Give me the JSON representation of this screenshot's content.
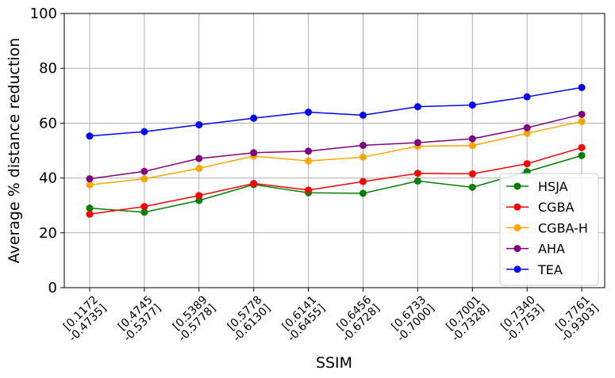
{
  "chart_data": {
    "type": "line",
    "title": "",
    "xlabel": "SSIM",
    "ylabel": "Average % distance reduction",
    "ylim": [
      0,
      100
    ],
    "yticks": [
      0,
      20,
      40,
      60,
      80,
      100
    ],
    "grid": true,
    "legend_position": "lower-right",
    "categories": [
      [
        "[0.1172",
        "-0.4735]"
      ],
      [
        "[0.4745",
        "-0.5377]"
      ],
      [
        "[0.5389",
        "-0.5778]"
      ],
      [
        "[0.5778",
        "-0.6130]"
      ],
      [
        "[0.6141",
        "-0.6455]"
      ],
      [
        "[0.6456",
        "-0.6728]"
      ],
      [
        "[0.6733",
        "-0.7000]"
      ],
      [
        "[0.7001",
        "-0.7328]"
      ],
      [
        "[0.7340",
        "-0.7753]"
      ],
      [
        "[0.7761",
        "-0.9303]"
      ]
    ],
    "series": [
      {
        "name": "HSJA",
        "color": "#008000",
        "values": [
          29.0,
          27.5,
          31.8,
          37.6,
          34.6,
          34.4,
          38.9,
          36.6,
          42.3,
          48.2
        ]
      },
      {
        "name": "CGBA",
        "color": "#ff0000",
        "values": [
          26.8,
          29.6,
          33.6,
          38.0,
          35.6,
          38.7,
          41.7,
          41.5,
          45.2,
          51.1
        ]
      },
      {
        "name": "CGBA-H",
        "color": "#ffa500",
        "values": [
          37.5,
          39.7,
          43.5,
          48.0,
          46.2,
          47.6,
          51.6,
          51.8,
          56.3,
          60.6
        ]
      },
      {
        "name": "AHA",
        "color": "#800080",
        "values": [
          39.7,
          42.4,
          47.1,
          49.2,
          49.8,
          51.9,
          52.9,
          54.3,
          58.3,
          63.2
        ]
      },
      {
        "name": "TEA",
        "color": "#0000ff",
        "values": [
          55.3,
          56.9,
          59.4,
          61.8,
          64.0,
          62.9,
          66.0,
          66.6,
          69.6,
          73.0
        ]
      }
    ]
  }
}
